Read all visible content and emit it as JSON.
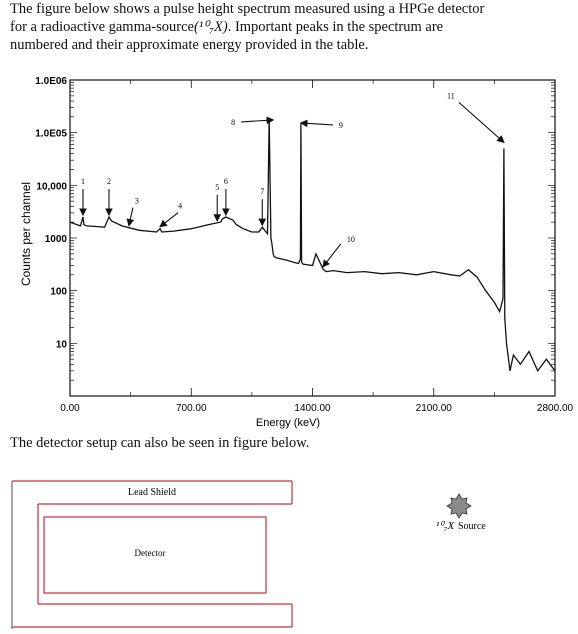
{
  "intro": {
    "line1": "The figure below shows a pulse height spectrum measured using a HPGe detector",
    "line2_pre": "for a radioactive gamma-source",
    "line2_formula": "(¹⁰₇X)",
    "line2_post": ". Important peaks in the spectrum are",
    "line3": "numbered and their approximate energy provided in the table."
  },
  "setup_text": "The detector setup can also be seen in figure below.",
  "chart_data": {
    "type": "line",
    "xlabel": "Energy (keV)",
    "ylabel": "Counts per channel",
    "xlim": [
      0,
      2800
    ],
    "ylim": [
      1,
      1000000
    ],
    "log_y": true,
    "x_ticks": [
      "0.00",
      "700.00",
      "1400.00",
      "2100.00",
      "2800.00"
    ],
    "y_ticks": [
      "10",
      "100",
      "1000",
      "10,000",
      "1.0E05",
      "1.0E06"
    ],
    "series": [
      {
        "x": [
          0,
          40,
          60,
          75,
          80,
          95,
          150,
          200,
          225,
          240,
          300,
          400,
          500,
          520,
          530,
          600,
          700,
          800,
          870,
          880,
          900,
          940,
          960,
          1000,
          1050,
          1090,
          1110,
          1140,
          1150,
          1160,
          1165,
          1173,
          1178,
          1190,
          1250,
          1300,
          1320,
          1330,
          1333,
          1337,
          1345,
          1400,
          1420,
          1460,
          1465,
          1470,
          1480,
          1520,
          1600,
          1700,
          1800,
          1900,
          2000,
          2100,
          2200,
          2250,
          2300,
          2350,
          2400,
          2450,
          2480,
          2500,
          2505,
          2510,
          2520,
          2540,
          2560,
          2600,
          2650,
          2700,
          2750,
          2800
        ],
        "y": [
          2000,
          1800,
          1700,
          2500,
          1800,
          1700,
          1650,
          1600,
          2500,
          2100,
          1700,
          1400,
          1300,
          1500,
          1300,
          1350,
          1500,
          1800,
          2000,
          2300,
          2500,
          2200,
          1800,
          1500,
          1300,
          1300,
          1600,
          1200,
          180000,
          1000,
          800,
          500,
          450,
          420,
          380,
          340,
          330,
          400,
          150000,
          350,
          320,
          300,
          500,
          260,
          250,
          240,
          230,
          240,
          220,
          230,
          210,
          220,
          200,
          230,
          200,
          190,
          250,
          180,
          100,
          60,
          40,
          70,
          50000,
          30,
          10,
          3,
          6,
          4,
          7,
          3,
          5,
          3
        ]
      }
    ],
    "peaks": [
      {
        "label": "1",
        "x": 75
      },
      {
        "label": "2",
        "x": 225
      },
      {
        "label": "3",
        "x": 340
      },
      {
        "label": "4",
        "x": 520
      },
      {
        "label": "5",
        "x": 850
      },
      {
        "label": "6",
        "x": 900
      },
      {
        "label": "7",
        "x": 1110
      },
      {
        "label": "8",
        "x": 1173
      },
      {
        "label": "9",
        "x": 1333
      },
      {
        "label": "10",
        "x": 1460
      },
      {
        "label": "11",
        "x": 2505
      }
    ]
  },
  "setup_figure": {
    "shield_label": "Lead Shield",
    "detector_label": "Detector",
    "source_formula": "¹⁰₇X",
    "source_label": "Source"
  }
}
